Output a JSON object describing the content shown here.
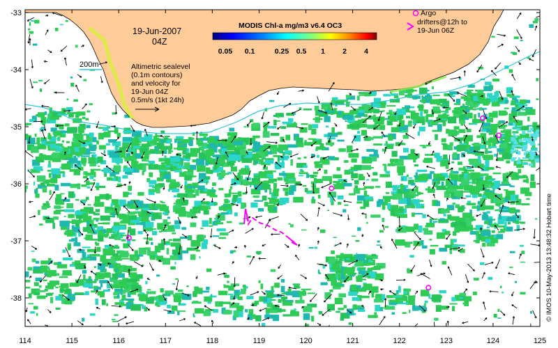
{
  "title": {
    "date": "19-Jun-2007",
    "time": "04Z"
  },
  "colorbar": {
    "title": "MODIS Chl-a mg/m3 v6.4 OC3",
    "ticks": [
      "0.05",
      "0.1",
      "0.25",
      "0.5",
      "1",
      "2",
      "4"
    ],
    "colors": [
      "#00007f",
      "#0000ff",
      "#007fff",
      "#00ffff",
      "#7fff7f",
      "#ffff00",
      "#ff7f00",
      "#ff0000",
      "#7f0000"
    ]
  },
  "contour_label": "200m",
  "legend": {
    "line1": "Altimetric sealevel",
    "line2": "(0.1m contours)",
    "line3": "and velocity for",
    "line4": "19-Jun 04Z",
    "line5": "0.5m/s (1kt 24h)"
  },
  "argo": {
    "line1": "Argo",
    "line2": "drifters@12h to",
    "line3": "19-Jun 06Z",
    "marker_color": "#ff00ff"
  },
  "axes": {
    "x_ticks": [
      "114",
      "115",
      "116",
      "117",
      "118",
      "119",
      "120",
      "121",
      "122",
      "123",
      "124",
      "125"
    ],
    "y_ticks": [
      "-33",
      "-34",
      "-35",
      "-36",
      "-37",
      "-38"
    ]
  },
  "credit": "© IMOS 10-May-2013 13:48:32 Hobart time",
  "colors": {
    "land": "#ffcc99",
    "chl_green": "#2ecc55",
    "chl_cyan": "#2bd6c8",
    "chl_yellow": "#e9e835",
    "arrow": "#000000"
  },
  "argo_positions": [
    {
      "lon": 123.78,
      "lat": -34.85
    },
    {
      "lon": 124.12,
      "lat": -35.15
    },
    {
      "lon": 120.55,
      "lat": -36.08
    },
    {
      "lon": 116.22,
      "lat": -36.95
    },
    {
      "lon": 122.62,
      "lat": -37.82
    }
  ]
}
